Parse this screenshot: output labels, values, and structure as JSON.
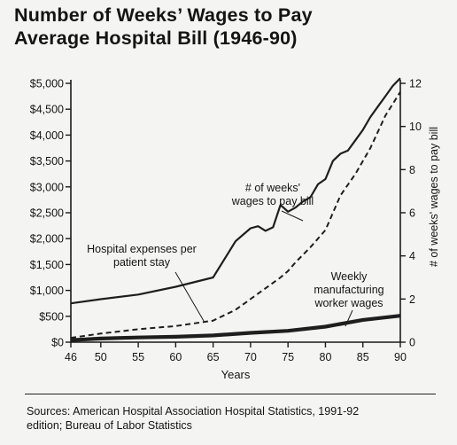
{
  "title_lines": [
    "Number of Weeks’ Wages to Pay",
    "Average Hospital Bill (1946-90)"
  ],
  "sources": [
    "Sources:  American Hospital Association Hospital Statistics, 1991-92",
    "edition; Bureau of Labor Statistics"
  ],
  "chart_data": {
    "type": "line",
    "title": "Number of Weeks’ Wages to Pay Average Hospital Bill (1946-90)",
    "xlabel": "Years",
    "ylabel_left": "",
    "ylabel_right": "# of weeks' wages to pay bill",
    "xlim": [
      46,
      90
    ],
    "ylim_left": [
      0,
      5000
    ],
    "ylim_right": [
      0,
      12
    ],
    "x_ticks": [
      46,
      50,
      55,
      60,
      65,
      70,
      75,
      80,
      85,
      90
    ],
    "y_left_ticks": [
      0,
      500,
      1000,
      1500,
      2000,
      2500,
      3000,
      3500,
      4000,
      4500,
      5000
    ],
    "y_left_tick_labels": [
      "$0",
      "$500",
      "$1,000",
      "$1,500",
      "$2,000",
      "$2,500",
      "$3,000",
      "$3,500",
      "$4,000",
      "$4,500",
      "$5,000"
    ],
    "y_right_ticks": [
      0,
      2,
      4,
      6,
      8,
      10,
      12
    ],
    "grid": false,
    "annotations": [
      {
        "text": [
          "# of weeks'",
          "wages to pay bill"
        ]
      },
      {
        "text": [
          "Hospital expenses per",
          "patient stay"
        ]
      },
      {
        "text": [
          "Weekly",
          "manufacturing",
          "worker wages"
        ]
      }
    ],
    "series": [
      {
        "name": "Hospital expenses per patient stay",
        "axis": "left",
        "style": "solid",
        "x": [
          46,
          50,
          55,
          60,
          65,
          68,
          70,
          71,
          72,
          73,
          74,
          75,
          76,
          77,
          78,
          79,
          80,
          81,
          82,
          83,
          84,
          85,
          86,
          87,
          88,
          89,
          90
        ],
        "y": [
          750,
          830,
          920,
          1070,
          1250,
          1950,
          2200,
          2240,
          2150,
          2220,
          2650,
          2520,
          2600,
          2720,
          2800,
          3050,
          3150,
          3500,
          3640,
          3700,
          3900,
          4100,
          4350,
          4550,
          4750,
          4950,
          5100
        ]
      },
      {
        "name": "# of weeks' wages to pay bill",
        "axis": "right",
        "style": "dashed",
        "x": [
          46,
          50,
          55,
          60,
          65,
          68,
          70,
          72,
          74,
          75,
          76,
          78,
          80,
          82,
          84,
          86,
          88,
          90
        ],
        "y": [
          0.2,
          0.4,
          0.6,
          0.75,
          1.0,
          1.5,
          2.0,
          2.5,
          3.0,
          3.3,
          3.7,
          4.4,
          5.2,
          6.8,
          7.8,
          9.0,
          10.5,
          11.6
        ]
      },
      {
        "name": "Weekly manufacturing worker wages",
        "axis": "left",
        "style": "bold",
        "x": [
          46,
          50,
          55,
          60,
          65,
          70,
          75,
          80,
          85,
          90
        ],
        "y": [
          40,
          70,
          90,
          105,
          130,
          180,
          220,
          300,
          430,
          510
        ]
      }
    ]
  }
}
